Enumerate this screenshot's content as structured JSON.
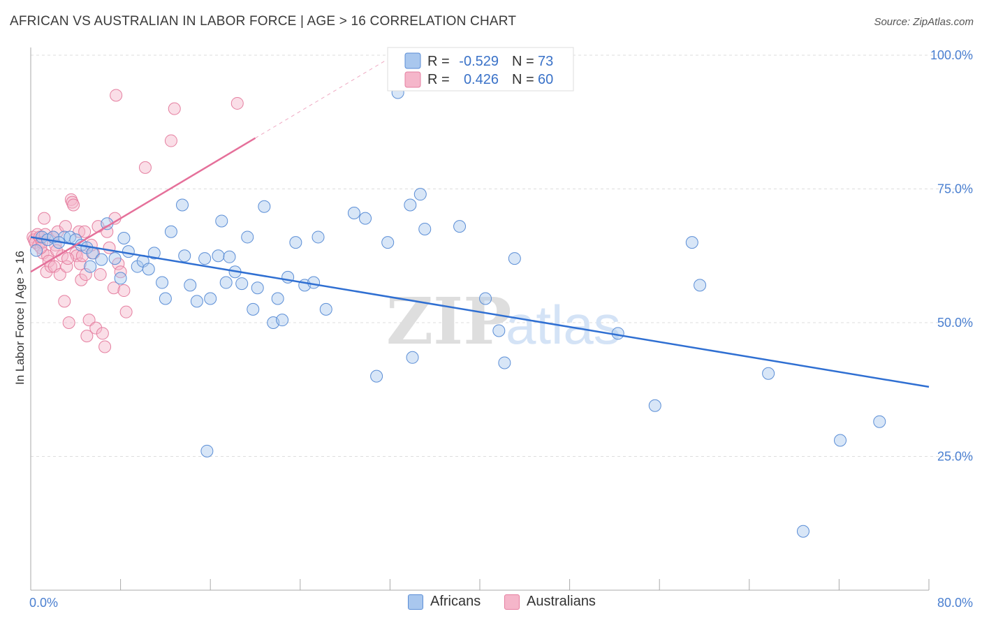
{
  "title": "AFRICAN VS AUSTRALIAN IN LABOR FORCE | AGE > 16 CORRELATION CHART",
  "source": "Source: ZipAtlas.com",
  "watermark": {
    "part1": "ZIP",
    "part2": "atlas"
  },
  "colors": {
    "africans_fill": "#a9c7ee",
    "africans_stroke": "#5b8ed6",
    "africans_line": "#2f6fd2",
    "australians_fill": "#f5b6ca",
    "australians_stroke": "#e57fa0",
    "australians_line": "#e5709a",
    "tick_text": "#4a7fd0",
    "grid": "#dddddd"
  },
  "legend": {
    "rows": [
      {
        "r_label": "R =",
        "r_value": "-0.529",
        "n_label": "N =",
        "n_value": "73"
      },
      {
        "r_label": "R =",
        "r_value": "0.426",
        "n_label": "N =",
        "n_value": "60"
      }
    ]
  },
  "bottom_legend": {
    "africans": "Africans",
    "australians": "Australians"
  },
  "chart_data": {
    "type": "scatter",
    "title": "AFRICAN VS AUSTRALIAN IN LABOR FORCE | AGE > 16 CORRELATION CHART",
    "xlabel": "",
    "ylabel": "In Labor Force | Age > 16",
    "xlim": [
      0,
      80
    ],
    "ylim": [
      0,
      105
    ],
    "x_tick_labels": [
      "0.0%",
      "80.0%"
    ],
    "y_ticks": [
      25,
      50,
      75,
      100
    ],
    "y_tick_labels": [
      "25.0%",
      "50.0%",
      "75.0%",
      "100.0%"
    ],
    "grid": "horizontal dashed",
    "legend_position": "top-center",
    "series": [
      {
        "name": "Africans",
        "r": -0.529,
        "n": 73,
        "trend": {
          "x": [
            0,
            80
          ],
          "y": [
            66.0,
            38.0
          ]
        },
        "points": [
          [
            0.5,
            63.5
          ],
          [
            1.0,
            66.0
          ],
          [
            1.5,
            65.5
          ],
          [
            2.0,
            66.0
          ],
          [
            3.0,
            66.0
          ],
          [
            3.5,
            66.0
          ],
          [
            4.0,
            65.5
          ],
          [
            4.5,
            64.5
          ],
          [
            5.0,
            64.0
          ],
          [
            5.5,
            63.0
          ],
          [
            5.3,
            60.5
          ],
          [
            6.3,
            61.8
          ],
          [
            6.8,
            68.5
          ],
          [
            7.5,
            62.0
          ],
          [
            8.0,
            58.3
          ],
          [
            8.3,
            65.8
          ],
          [
            8.7,
            63.3
          ],
          [
            9.5,
            60.5
          ],
          [
            10.0,
            61.5
          ],
          [
            10.5,
            60.0
          ],
          [
            11.0,
            63.0
          ],
          [
            11.7,
            57.5
          ],
          [
            12.0,
            54.5
          ],
          [
            12.5,
            67.0
          ],
          [
            13.5,
            72.0
          ],
          [
            13.7,
            62.5
          ],
          [
            14.2,
            57.0
          ],
          [
            14.8,
            54.0
          ],
          [
            15.5,
            62.0
          ],
          [
            16.0,
            54.5
          ],
          [
            15.7,
            26.0
          ],
          [
            17.0,
            69.0
          ],
          [
            16.7,
            62.5
          ],
          [
            17.4,
            57.5
          ],
          [
            17.7,
            62.3
          ],
          [
            18.2,
            59.5
          ],
          [
            18.8,
            57.3
          ],
          [
            19.3,
            66.0
          ],
          [
            19.8,
            52.5
          ],
          [
            20.2,
            56.5
          ],
          [
            20.8,
            71.7
          ],
          [
            21.6,
            50.0
          ],
          [
            22.0,
            54.5
          ],
          [
            22.4,
            50.5
          ],
          [
            22.9,
            58.5
          ],
          [
            23.6,
            65.0
          ],
          [
            24.4,
            57.0
          ],
          [
            25.2,
            57.5
          ],
          [
            25.6,
            66.0
          ],
          [
            26.3,
            52.5
          ],
          [
            28.8,
            70.5
          ],
          [
            29.8,
            69.5
          ],
          [
            30.8,
            40.0
          ],
          [
            31.8,
            65.0
          ],
          [
            32.7,
            93.0
          ],
          [
            33.8,
            72.0
          ],
          [
            34.0,
            43.5
          ],
          [
            34.7,
            74.0
          ],
          [
            35.1,
            67.5
          ],
          [
            38.2,
            68.0
          ],
          [
            40.5,
            54.5
          ],
          [
            41.7,
            48.5
          ],
          [
            42.2,
            42.5
          ],
          [
            43.1,
            62.0
          ],
          [
            52.3,
            48.0
          ],
          [
            55.6,
            34.5
          ],
          [
            58.9,
            65.0
          ],
          [
            59.6,
            57.0
          ],
          [
            65.7,
            40.5
          ],
          [
            68.8,
            11.0
          ],
          [
            72.1,
            28.0
          ],
          [
            75.6,
            31.5
          ],
          [
            2.5,
            65.0
          ]
        ]
      },
      {
        "name": "Australians",
        "r": 0.426,
        "n": 60,
        "trend": {
          "x": [
            0,
            20
          ],
          "y": [
            59.5,
            84.5
          ],
          "extended_to": [
            32,
            99.5
          ]
        },
        "points": [
          [
            0.2,
            66.0
          ],
          [
            0.3,
            65.5
          ],
          [
            0.4,
            65.0
          ],
          [
            0.6,
            66.5
          ],
          [
            0.7,
            64.5
          ],
          [
            0.8,
            66.0
          ],
          [
            1.0,
            65.0
          ],
          [
            1.1,
            63.0
          ],
          [
            1.2,
            69.5
          ],
          [
            1.4,
            59.5
          ],
          [
            1.5,
            62.5
          ],
          [
            1.6,
            61.5
          ],
          [
            1.8,
            60.5
          ],
          [
            2.0,
            66.0
          ],
          [
            2.1,
            60.5
          ],
          [
            2.2,
            64.5
          ],
          [
            2.4,
            67.0
          ],
          [
            2.6,
            59.0
          ],
          [
            2.8,
            62.5
          ],
          [
            3.0,
            54.0
          ],
          [
            3.1,
            68.0
          ],
          [
            3.2,
            60.5
          ],
          [
            3.4,
            50.0
          ],
          [
            3.6,
            73.0
          ],
          [
            3.7,
            72.5
          ],
          [
            3.8,
            72.0
          ],
          [
            4.0,
            63.0
          ],
          [
            4.1,
            62.5
          ],
          [
            4.3,
            67.0
          ],
          [
            4.4,
            61.0
          ],
          [
            4.5,
            58.0
          ],
          [
            4.6,
            62.5
          ],
          [
            4.8,
            67.0
          ],
          [
            4.9,
            59.0
          ],
          [
            5.0,
            47.5
          ],
          [
            5.2,
            50.5
          ],
          [
            5.6,
            63.0
          ],
          [
            5.8,
            49.0
          ],
          [
            6.0,
            68.0
          ],
          [
            6.2,
            59.0
          ],
          [
            6.4,
            48.0
          ],
          [
            6.6,
            45.5
          ],
          [
            6.8,
            67.0
          ],
          [
            7.0,
            64.0
          ],
          [
            7.4,
            56.5
          ],
          [
            7.5,
            69.5
          ],
          [
            7.6,
            92.5
          ],
          [
            7.8,
            61.0
          ],
          [
            8.0,
            59.5
          ],
          [
            8.3,
            56.0
          ],
          [
            8.5,
            52.0
          ],
          [
            10.2,
            79.0
          ],
          [
            12.5,
            84.0
          ],
          [
            12.8,
            90.0
          ],
          [
            18.4,
            91.0
          ],
          [
            0.9,
            64.0
          ],
          [
            1.3,
            66.5
          ],
          [
            2.3,
            63.5
          ],
          [
            3.3,
            62.0
          ],
          [
            5.4,
            64.5
          ]
        ]
      }
    ]
  }
}
